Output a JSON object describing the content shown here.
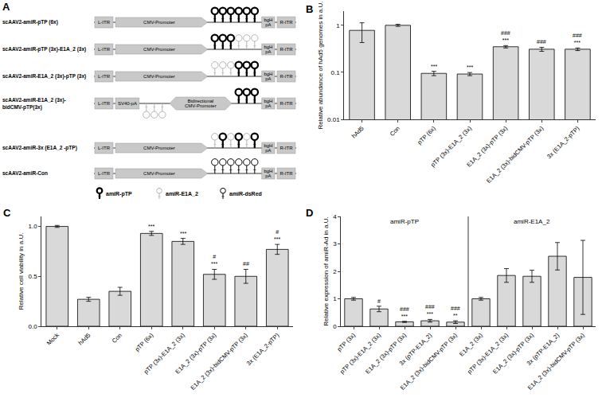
{
  "diagram": {
    "title": "A",
    "constructs": [
      {
        "name": "scAAV2-amiR-pTP (6x)",
        "parts": [
          {
            "kind": "box",
            "text": "L-ITR"
          },
          {
            "kind": "promoter",
            "text": "CMV-Promoter"
          },
          {
            "kind": "hairpins",
            "items": [
              "amiR-pTP",
              "amiR-pTP",
              "amiR-pTP",
              "amiR-pTP",
              "amiR-pTP",
              "amiR-pTP"
            ]
          },
          {
            "kind": "box",
            "text": "bgH pA"
          },
          {
            "kind": "box",
            "text": "R-ITR"
          }
        ]
      },
      {
        "name": "scAAV2-amiR-pTP (3x)-E1A_2 (3x)",
        "parts": [
          {
            "kind": "box",
            "text": "L-ITR"
          },
          {
            "kind": "promoter",
            "text": "CMV-Promoter"
          },
          {
            "kind": "hairpins",
            "items": [
              "amiR-pTP",
              "amiR-pTP",
              "amiR-pTP",
              "amiR-E1A_2",
              "amiR-E1A_2",
              "amiR-E1A_2"
            ]
          },
          {
            "kind": "box",
            "text": "bgH pA"
          },
          {
            "kind": "box",
            "text": "R-ITR"
          }
        ]
      },
      {
        "name": "scAAV2-amiR-E1A_2 (3x)-pTP (3x)",
        "parts": [
          {
            "kind": "box",
            "text": "L-ITR"
          },
          {
            "kind": "promoter",
            "text": "CMV-Promoter"
          },
          {
            "kind": "hairpins",
            "items": [
              "amiR-E1A_2",
              "amiR-E1A_2",
              "amiR-E1A_2",
              "amiR-pTP",
              "amiR-pTP",
              "amiR-pTP"
            ]
          },
          {
            "kind": "box",
            "text": "bgH pA"
          },
          {
            "kind": "box",
            "text": "R-ITR"
          }
        ]
      },
      {
        "name": [
          "scAAV2-amiR-E1A_2 (3x)-",
          "bidCMV-pTP(3x)"
        ],
        "parts": [
          {
            "kind": "box",
            "text": "L-ITR"
          },
          {
            "kind": "box",
            "text": "SV40-pA"
          },
          {
            "kind": "hairpins",
            "side": "below",
            "items": [
              "amiR-E1A_2",
              "amiR-E1A_2",
              "amiR-E1A_2"
            ]
          },
          {
            "kind": "bidirectional",
            "text": "Bidirectional CMV-Promoter"
          },
          {
            "kind": "hairpins",
            "items": [
              "amiR-pTP",
              "amiR-pTP",
              "amiR-pTP"
            ]
          },
          {
            "kind": "box",
            "text": "bgH pA"
          },
          {
            "kind": "box",
            "text": "R-ITR"
          }
        ]
      },
      {
        "name": "scAAV2-amiR-3x (E1A_2 -pTP)",
        "parts": [
          {
            "kind": "box",
            "text": "L-ITR"
          },
          {
            "kind": "promoter",
            "text": "CMV-Promoter"
          },
          {
            "kind": "hairpins",
            "items": [
              "amiR-E1A_2",
              "amiR-pTP",
              "amiR-E1A_2",
              "amiR-pTP",
              "amiR-E1A_2",
              "amiR-pTP"
            ]
          },
          {
            "kind": "box",
            "text": "bgH pA"
          },
          {
            "kind": "box",
            "text": "R-ITR"
          }
        ]
      },
      {
        "name": "scAAV2-amiR-Con",
        "parts": [
          {
            "kind": "box",
            "text": "L-ITR"
          },
          {
            "kind": "promoter",
            "text": "CMV-Promoter"
          },
          {
            "kind": "hairpins",
            "items": [
              "amiR-dsRed",
              "amiR-dsRed",
              "amiR-dsRed",
              "amiR-dsRed",
              "amiR-dsRed",
              "amiR-dsRed"
            ]
          },
          {
            "kind": "box",
            "text": "bgH pA"
          },
          {
            "kind": "box",
            "text": "R-ITR"
          }
        ]
      }
    ],
    "legend": [
      "amiR-pTP",
      "amiR-E1A_2",
      "amiR-dsRed"
    ]
  },
  "chart_data": [
    {
      "type": "bar",
      "title": "B",
      "y_label": "Relative abundance of hAd5 genomes in a.U.",
      "categories": [
        "hAd5",
        "Con",
        "pTP (6x)",
        "pTP (3x)-E1A_2 (3x)",
        "E1A_2 (3x)-pTP (3x)",
        "E1A_2 (3x)-bidCMV-pTP (3x)",
        "3x (E1A_2-pTP)"
      ],
      "values": [
        0.78,
        1.0,
        0.095,
        0.092,
        0.35,
        0.31,
        0.31
      ],
      "errors": [
        0.35,
        0.05,
        0.01,
        0.007,
        0.02,
        0.03,
        0.02
      ],
      "annotations": [
        null,
        null,
        [
          "***"
        ],
        [
          "***"
        ],
        [
          "###",
          "***"
        ],
        [
          "###"
        ],
        [
          "###",
          "***"
        ]
      ],
      "color": "#d9d9d9",
      "log": "y",
      "ylim": [
        0.01,
        2
      ],
      "yticks": [
        0.01,
        0.1,
        1
      ],
      "grid": false
    },
    {
      "type": "bar",
      "title": "C",
      "y_label": "Relative cell viability in a.U.",
      "categories": [
        "Mock",
        "hAd5",
        "Con",
        "pTP (6x)",
        "pTP (3x)-E1A_2 (3x)",
        "E1A_2 (3x)-pTP (3x)",
        "E1A_2 (3x)-bidCMV-pTP (3x)",
        "3x (E1A_2-pTP)"
      ],
      "values": [
        1.0,
        0.27,
        0.35,
        0.93,
        0.85,
        0.52,
        0.5,
        0.77
      ],
      "errors": [
        0.01,
        0.02,
        0.04,
        0.02,
        0.03,
        0.05,
        0.07,
        0.05
      ],
      "annotations": [
        null,
        null,
        null,
        [
          "***"
        ],
        [
          "***"
        ],
        [
          "#",
          "***"
        ],
        [
          "##"
        ],
        [
          "#",
          "***"
        ]
      ],
      "color": "#d9d9d9",
      "ylim": [
        0,
        1.1
      ],
      "yticks": [
        {
          "value": 0,
          "label": "0.0"
        },
        {
          "value": 0.5,
          "label": "0.5"
        },
        {
          "value": 1,
          "label": "1.0"
        }
      ],
      "grid": false
    },
    {
      "type": "bar",
      "title": "D",
      "y_label": "Relative expression of amiR-Ad in a.U.",
      "categories": [
        "pTP (3x)",
        "pTP (3x)-E1A_2 (3x)",
        "E1A_2 (3x)-pTP (3x)",
        "3x (pTP-E1A_2)",
        "E1A_2 (3x)-bidCMV-pTP (3x)",
        "E1A_2 (3x)",
        "pTP (3x)-E1A_2 (3x)",
        "E1A_2 (3x)-pTP (3x)",
        "3x (pTP-E1A_2)",
        "E1A_2 (3x)-bidCMV-pTP (3x)"
      ],
      "values": [
        1.0,
        0.63,
        0.16,
        0.2,
        0.15,
        1.0,
        1.85,
        1.82,
        2.55,
        1.78
      ],
      "errors": [
        0.05,
        0.1,
        0.02,
        0.05,
        0.05,
        0.05,
        0.25,
        0.22,
        0.5,
        1.35
      ],
      "annotations": [
        null,
        [
          "#"
        ],
        [
          "###",
          "***"
        ],
        [
          "###",
          "***"
        ],
        [
          "###",
          "**"
        ],
        null,
        null,
        null,
        null,
        null
      ],
      "groups": [
        {
          "label": "amiR-pTP",
          "size": 5
        },
        {
          "label": "amiR-E1A_2",
          "size": 5
        }
      ],
      "color": "#d9d9d9",
      "ylim": [
        0,
        4
      ],
      "yticks": [
        0,
        1,
        2,
        3,
        4
      ],
      "grid": false
    }
  ]
}
